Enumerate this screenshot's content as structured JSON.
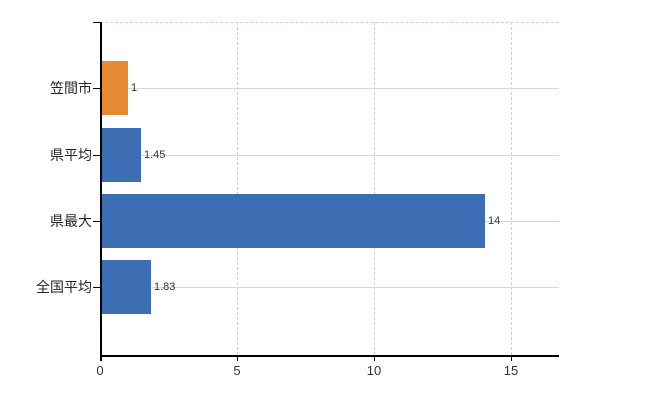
{
  "chart_data": {
    "type": "bar",
    "orientation": "horizontal",
    "title": "",
    "xlabel": "",
    "ylabel": "",
    "categories": [
      "笠間市",
      "県平均",
      "県最大",
      "全国平均"
    ],
    "values": [
      1,
      1.45,
      14,
      1.83
    ],
    "value_labels": [
      "1",
      "1.45",
      "14",
      "1.83"
    ],
    "bar_colors": [
      "#E88A33",
      "#3D6DB3",
      "#3D6DB3",
      "#3D6DB3"
    ],
    "xlim": [
      0,
      16.75
    ],
    "xticks": [
      0,
      5,
      10,
      15
    ],
    "xtick_labels": [
      "0",
      "5",
      "10",
      "15"
    ],
    "grid": true,
    "legend": false
  },
  "colors": {
    "background": "#FFFFFF",
    "axis": "#000000",
    "gridline_horizontal": "#D8D8D8",
    "gridline_vertical": "#D4D0D4",
    "plot_top_border": "#D5CBD1",
    "bar_orange": "#E88A33",
    "bar_blue": "#3D6DB3",
    "value_label_text": "#333333",
    "category_label_text": "#262626",
    "xtick_label_text": "#333333"
  }
}
